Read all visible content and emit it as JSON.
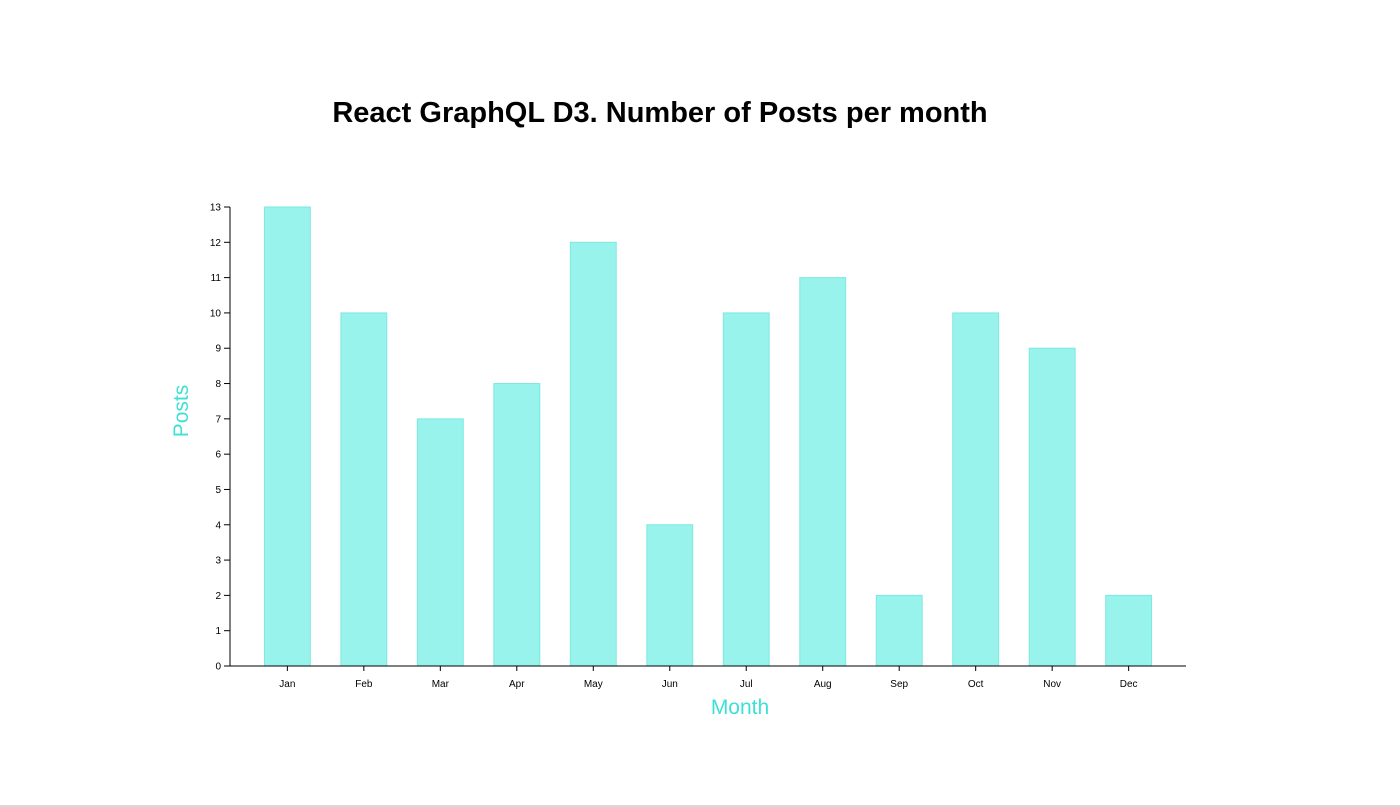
{
  "chart_data": {
    "type": "bar",
    "title": "React GraphQL D3. Number of Posts per month",
    "xlabel": "Month",
    "ylabel": "Posts",
    "categories": [
      "Jan",
      "Feb",
      "Mar",
      "Apr",
      "May",
      "Jun",
      "Jul",
      "Aug",
      "Sep",
      "Oct",
      "Nov",
      "Dec"
    ],
    "values": [
      13,
      10,
      7,
      8,
      12,
      4,
      10,
      11,
      2,
      10,
      9,
      2
    ],
    "ylim": [
      0,
      13
    ],
    "yticks": [
      0,
      1,
      2,
      3,
      4,
      5,
      6,
      7,
      8,
      9,
      10,
      11,
      12,
      13
    ],
    "grid": false,
    "legend": "none",
    "colors": {
      "bar_fill": "#98f3ec",
      "bar_stroke": "#7ee8e0",
      "axis_label": "#3ee0d6",
      "axis": "#000000",
      "title": "#000000"
    }
  }
}
